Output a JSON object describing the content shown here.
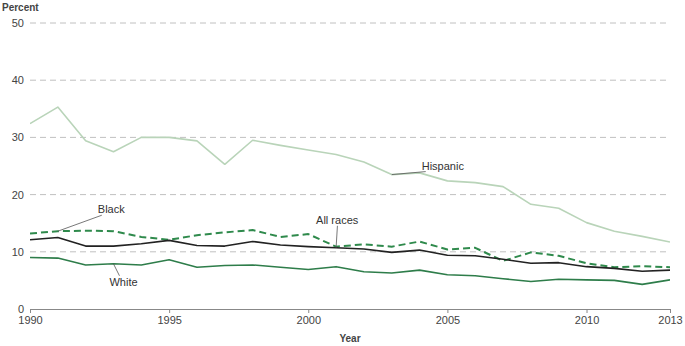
{
  "chart_data": {
    "type": "line",
    "y_label": "Percent",
    "x_label": "Year",
    "x": [
      1990,
      1991,
      1992,
      1993,
      1994,
      1995,
      1996,
      1997,
      1998,
      1999,
      2000,
      2001,
      2002,
      2003,
      2004,
      2005,
      2006,
      2007,
      2008,
      2009,
      2010,
      2011,
      2012,
      2013
    ],
    "xlim": [
      1990,
      2013
    ],
    "xticks": [
      1990,
      1995,
      2000,
      2005,
      2010,
      2013
    ],
    "ylim": [
      0,
      50
    ],
    "yticks": [
      0,
      10,
      20,
      30,
      40,
      50
    ],
    "grid": true,
    "series": [
      {
        "name": "Hispanic",
        "color": "#b9d4b9",
        "line_style": "solid",
        "values": [
          32.4,
          35.3,
          29.4,
          27.5,
          30.0,
          30.0,
          29.4,
          25.3,
          29.5,
          28.6,
          27.8,
          27.0,
          25.7,
          23.5,
          23.8,
          22.4,
          22.1,
          21.4,
          18.3,
          17.6,
          15.1,
          13.6,
          12.7,
          11.7
        ]
      },
      {
        "name": "Black",
        "color": "#2f8a4c",
        "line_style": "dashed",
        "values": [
          13.2,
          13.6,
          13.7,
          13.6,
          12.6,
          12.1,
          12.9,
          13.4,
          13.8,
          12.6,
          13.1,
          10.9,
          11.3,
          10.9,
          11.8,
          10.4,
          10.7,
          8.4,
          9.9,
          9.3,
          8.0,
          7.3,
          7.5,
          7.3
        ]
      },
      {
        "name": "All races",
        "color": "#222222",
        "line_style": "solid",
        "values": [
          12.1,
          12.5,
          11.0,
          11.0,
          11.4,
          12.0,
          11.1,
          11.0,
          11.8,
          11.2,
          10.9,
          10.7,
          10.5,
          9.9,
          10.3,
          9.4,
          9.3,
          8.7,
          8.0,
          8.1,
          7.4,
          7.1,
          6.6,
          6.8
        ]
      },
      {
        "name": "White",
        "color": "#2e7d4a",
        "line_style": "solid",
        "values": [
          9.0,
          8.9,
          7.7,
          7.9,
          7.7,
          8.6,
          7.3,
          7.6,
          7.7,
          7.3,
          6.9,
          7.4,
          6.5,
          6.3,
          6.8,
          6.0,
          5.8,
          5.3,
          4.8,
          5.2,
          5.1,
          5.0,
          4.3,
          5.1
        ]
      }
    ]
  }
}
